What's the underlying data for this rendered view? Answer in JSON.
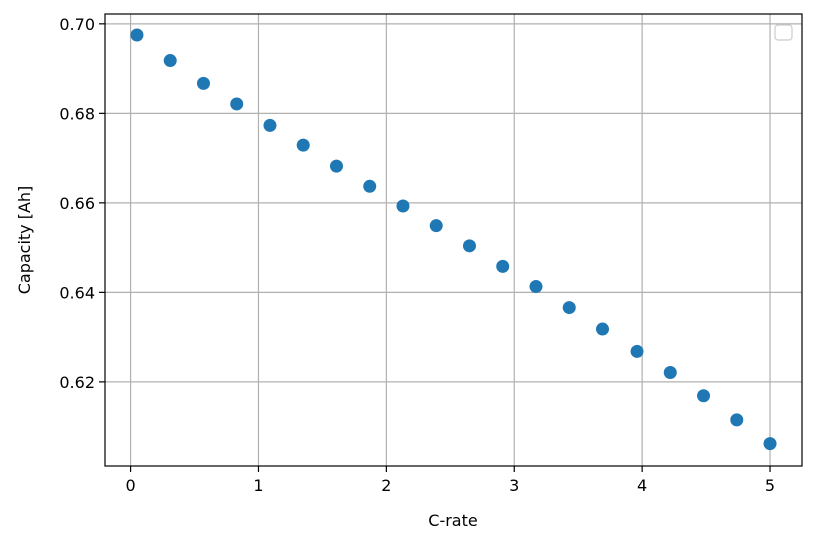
{
  "chart_data": {
    "type": "scatter",
    "title": "",
    "xlabel": "C-rate",
    "ylabel": "Capacity [Ah]",
    "xlim": [
      -0.2,
      5.25
    ],
    "ylim": [
      0.6012,
      0.7022
    ],
    "xticks": [
      0,
      1,
      2,
      3,
      4,
      5
    ],
    "xtick_labels": [
      "0",
      "1",
      "2",
      "3",
      "4",
      "5"
    ],
    "yticks": [
      0.62,
      0.64,
      0.66,
      0.68,
      0.7
    ],
    "ytick_labels": [
      "0.62",
      "0.64",
      "0.66",
      "0.68",
      "0.70"
    ],
    "grid": true,
    "legend": "top-right (empty)",
    "marker_color": "#1f77b4",
    "series": [
      {
        "x": [
          0.05,
          0.31,
          0.57,
          0.83,
          1.09,
          1.35,
          1.61,
          1.87,
          2.13,
          2.39,
          2.65,
          2.91,
          3.17,
          3.43,
          3.69,
          3.96,
          4.22,
          4.48,
          4.74,
          5.0
        ],
        "y": [
          0.6975,
          0.6918,
          0.6867,
          0.6821,
          0.6773,
          0.6729,
          0.6682,
          0.6637,
          0.6593,
          0.6549,
          0.6504,
          0.6458,
          0.6413,
          0.6366,
          0.6318,
          0.6268,
          0.6221,
          0.6169,
          0.6115,
          0.6062
        ]
      }
    ]
  }
}
